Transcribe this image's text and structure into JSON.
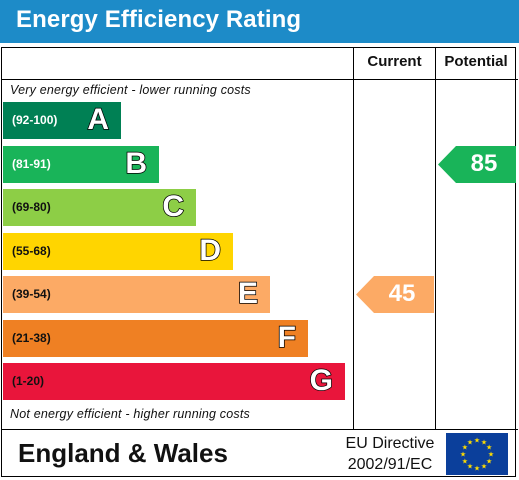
{
  "header": {
    "title": "Energy Efficiency Rating"
  },
  "columns": {
    "current": "Current",
    "potential": "Potential"
  },
  "notes": {
    "top": "Very energy efficient - lower running costs",
    "bottom": "Not energy efficient - higher running costs"
  },
  "chart_data": {
    "type": "bar",
    "title": "Energy Efficiency Rating",
    "bands": [
      {
        "range": "(92-100)",
        "letter": "A",
        "color": "#008054"
      },
      {
        "range": "(81-91)",
        "letter": "B",
        "color": "#19b459"
      },
      {
        "range": "(69-80)",
        "letter": "C",
        "color": "#8dce46"
      },
      {
        "range": "(55-68)",
        "letter": "D",
        "color": "#ffd500"
      },
      {
        "range": "(39-54)",
        "letter": "E",
        "color": "#fcaa65"
      },
      {
        "range": "(21-38)",
        "letter": "F",
        "color": "#ef8023"
      },
      {
        "range": "(1-20)",
        "letter": "G",
        "color": "#e9153b"
      }
    ],
    "current": {
      "value": 45,
      "band": "E",
      "color": "#fcaa65"
    },
    "potential": {
      "value": 85,
      "band": "B",
      "color": "#19b459"
    }
  },
  "footer": {
    "region": "England & Wales",
    "directive_line1": "EU Directive",
    "directive_line2": "2002/91/EC"
  },
  "colors": {
    "header": "#1d8bc8",
    "eu_flag": "#0b3f9b",
    "eu_stars": "#ffdd00"
  }
}
